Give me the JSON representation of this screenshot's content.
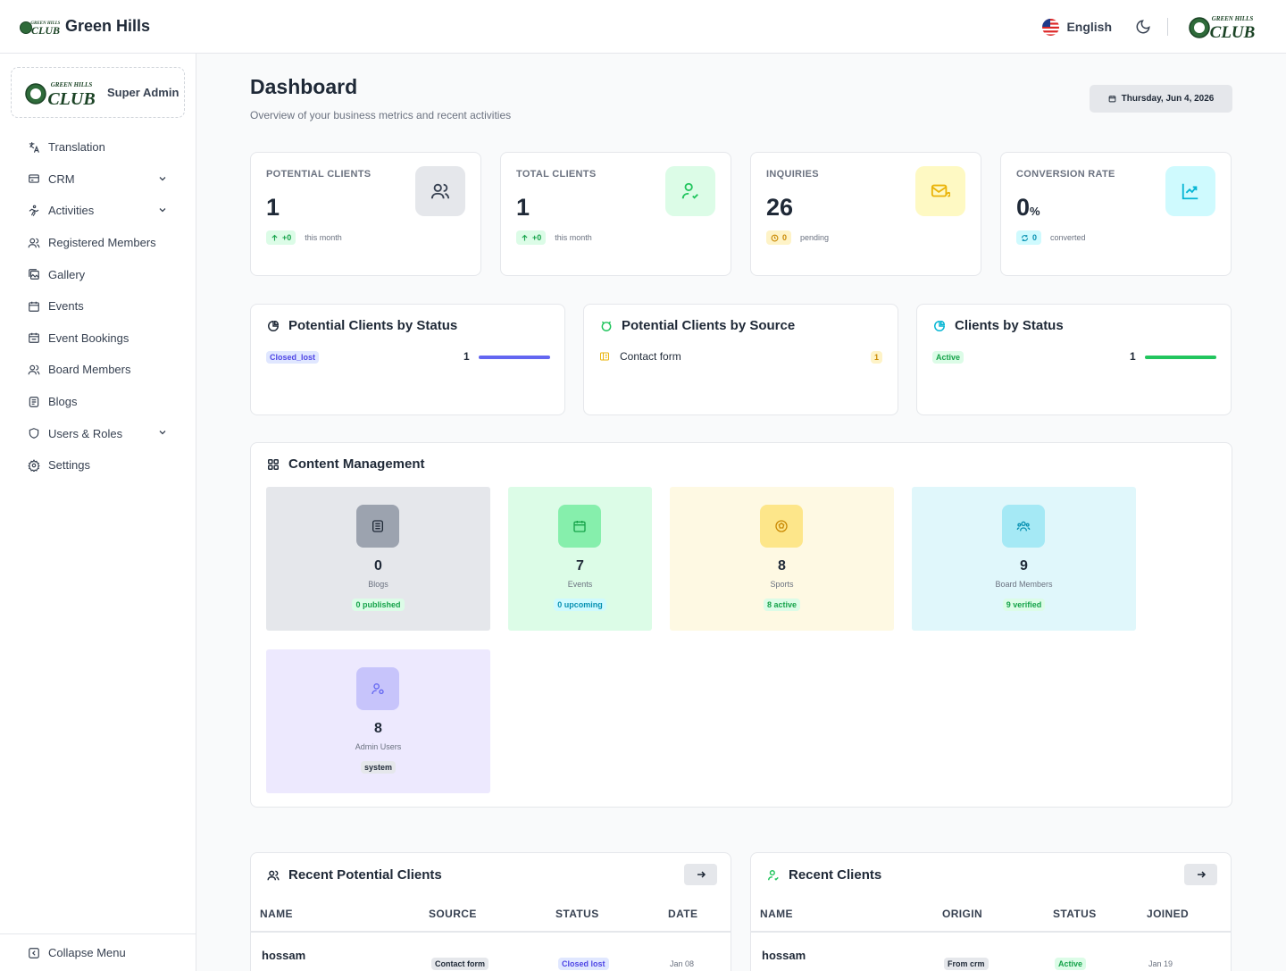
{
  "app": {
    "name": "Green Hills",
    "logo_text_top": "GREEN HILLS",
    "logo_text_bottom": "CLUB"
  },
  "topbar": {
    "language": "English"
  },
  "sidebar": {
    "role": "Super Admin",
    "items": [
      {
        "label": "Translation",
        "icon": "translate-icon",
        "expandable": false
      },
      {
        "label": "CRM",
        "icon": "crm-icon",
        "expandable": true
      },
      {
        "label": "Activities",
        "icon": "activity-icon",
        "expandable": true
      },
      {
        "label": "Registered Members",
        "icon": "users-icon",
        "expandable": false
      },
      {
        "label": "Gallery",
        "icon": "gallery-icon",
        "expandable": false
      },
      {
        "label": "Events",
        "icon": "calendar-icon",
        "expandable": false
      },
      {
        "label": "Event Bookings",
        "icon": "calendar-check-icon",
        "expandable": false
      },
      {
        "label": "Board Members",
        "icon": "users-icon",
        "expandable": false
      },
      {
        "label": "Blogs",
        "icon": "blog-icon",
        "expandable": false
      },
      {
        "label": "Users & Roles",
        "icon": "shield-icon",
        "expandable": true
      },
      {
        "label": "Settings",
        "icon": "gear-icon",
        "expandable": false
      }
    ],
    "collapse_label": "Collapse Menu"
  },
  "header": {
    "title": "Dashboard",
    "subtitle": "Overview of your business metrics and recent activities",
    "date": "Thursday, Jun 4, 2026"
  },
  "stats": [
    {
      "label": "POTENTIAL CLIENTS",
      "value": "1",
      "unit": "",
      "pill": "+0",
      "foot": "this month",
      "color": "#6b7280"
    },
    {
      "label": "TOTAL CLIENTS",
      "value": "1",
      "unit": "",
      "pill": "+0",
      "foot": "this month",
      "color": "#22c55e"
    },
    {
      "label": "INQUIRIES",
      "value": "26",
      "unit": "",
      "pill": "0",
      "foot": "pending",
      "color": "#eab308"
    },
    {
      "label": "CONVERSION RATE",
      "value": "0",
      "unit": "%",
      "pill": "0",
      "foot": "converted",
      "color": "#06b6d4"
    }
  ],
  "status_cards": [
    {
      "title": "Potential Clients by Status",
      "tag": "Closed_lost",
      "count": "1",
      "fill": 1.0,
      "color": "#6366f1"
    },
    {
      "title": "Potential Clients by Source",
      "source": "Contact form",
      "count": "1"
    },
    {
      "title": "Clients by Status",
      "tag": "Active",
      "count": "1",
      "fill": 1.0,
      "color": "#22c55e"
    }
  ],
  "content_management": {
    "title": "Content Management",
    "tiles": [
      {
        "value": "0",
        "label": "Blogs",
        "badge": "0 published",
        "icon": "blog-icon"
      },
      {
        "value": "7",
        "label": "Events",
        "badge": "0 upcoming",
        "icon": "calendar-icon"
      },
      {
        "value": "8",
        "label": "Sports",
        "badge": "8 active",
        "icon": "ball-icon"
      },
      {
        "value": "9",
        "label": "Board Members",
        "badge": "9 verified",
        "icon": "team-icon"
      },
      {
        "value": "8",
        "label": "Admin Users",
        "badge": "system",
        "icon": "admin-icon"
      }
    ]
  },
  "recent_potential": {
    "title": "Recent Potential Clients",
    "columns": [
      "NAME",
      "SOURCE",
      "STATUS",
      "DATE"
    ],
    "rows": [
      {
        "name": "hossam",
        "source": "Contact form",
        "status": "Closed lost",
        "date": "Jan 08"
      }
    ]
  },
  "recent_clients": {
    "title": "Recent Clients",
    "columns": [
      "NAME",
      "ORIGIN",
      "STATUS",
      "JOINED"
    ],
    "rows": [
      {
        "name": "hossam",
        "origin": "From crm",
        "status": "Active",
        "date": "Jan 19"
      }
    ]
  }
}
